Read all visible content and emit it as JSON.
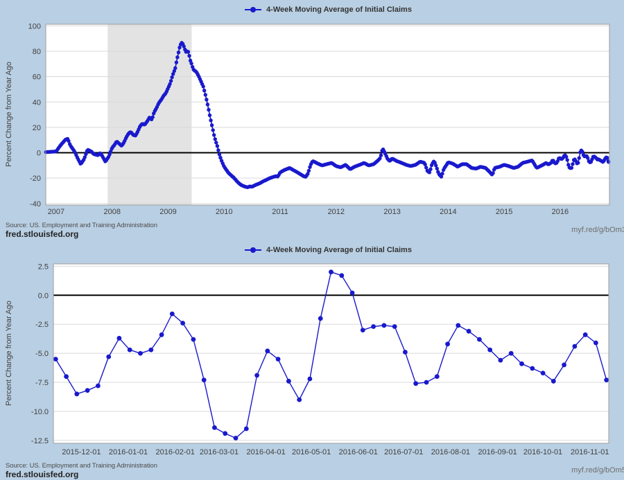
{
  "colors": {
    "background": "#b9cfe3",
    "plot_bg": "#ffffff",
    "series_blue": "#1919cd",
    "recession_band": "#e3e3e3",
    "grid": "#d9d9d9",
    "zero_line": "#000000",
    "plot_border": "#9e9e9e",
    "tick_text": "#404040",
    "legend_text": "#333333"
  },
  "top_section": {
    "legend_label": "4-Week Moving Average of Initial Claims",
    "source": "Source: US. Employment and Training Administration",
    "site": "fred.stlouisfed.org",
    "permalink": "myf.red/g/bOm3"
  },
  "bottom_section": {
    "legend_label": "4-Week Moving Average of Initial Claims",
    "source": "Source: US. Employment and Training Administration",
    "site": "fred.stlouisfed.org",
    "permalink": "myf.red/g/bOm5"
  },
  "chart_data": [
    {
      "type": "line",
      "title": "4-Week Moving Average of Initial Claims",
      "ylabel": "Percent Change from Year Ago",
      "xlabel": "",
      "legend": "4-Week Moving Average of Initial Claims",
      "legend_position": "top-center",
      "grid": "horizontal",
      "zero_line": true,
      "frequency": "weekly, shown 2007 through 2016-11-12",
      "x_ticks": [
        2007,
        2008,
        2009,
        2010,
        2011,
        2012,
        2013,
        2014,
        2015,
        2016
      ],
      "x_tick_labels": [
        "2007",
        "2008",
        "2009",
        "2010",
        "2011",
        "2012",
        "2013",
        "2014",
        "2015",
        "2016"
      ],
      "y_ticks": [
        100,
        80,
        60,
        40,
        20,
        0,
        -20,
        -40
      ],
      "y_tick_labels": [
        "100",
        "80",
        "60",
        "40",
        "20",
        "0",
        "-20",
        "-40"
      ],
      "xlim": [
        2006.815,
        2016.88
      ],
      "ylim": [
        -41.2,
        101.3
      ],
      "recession_band": [
        2007.92,
        2009.42
      ],
      "series_continues_with_bottom_chart": true,
      "points": [
        [
          2006.82,
          0.5
        ],
        [
          2007.0,
          1
        ],
        [
          2007.08,
          6
        ],
        [
          2007.17,
          10.5
        ],
        [
          2007.21,
          11
        ],
        [
          2007.25,
          6
        ],
        [
          2007.33,
          1
        ],
        [
          2007.38,
          -4
        ],
        [
          2007.44,
          -9
        ],
        [
          2007.5,
          -5
        ],
        [
          2007.56,
          2.5
        ],
        [
          2007.63,
          1
        ],
        [
          2007.67,
          -1
        ],
        [
          2007.75,
          -2
        ],
        [
          2007.79,
          0
        ],
        [
          2007.83,
          -3
        ],
        [
          2007.88,
          -7
        ],
        [
          2007.94,
          -3
        ],
        [
          2008.0,
          4
        ],
        [
          2008.04,
          6
        ],
        [
          2008.08,
          9
        ],
        [
          2008.13,
          7
        ],
        [
          2008.17,
          5.5
        ],
        [
          2008.21,
          8
        ],
        [
          2008.25,
          12
        ],
        [
          2008.29,
          15
        ],
        [
          2008.33,
          16.5
        ],
        [
          2008.38,
          14
        ],
        [
          2008.42,
          13.5
        ],
        [
          2008.46,
          17
        ],
        [
          2008.5,
          21
        ],
        [
          2008.54,
          23
        ],
        [
          2008.58,
          22
        ],
        [
          2008.63,
          25
        ],
        [
          2008.67,
          28
        ],
        [
          2008.71,
          26
        ],
        [
          2008.75,
          32
        ],
        [
          2008.79,
          35
        ],
        [
          2008.83,
          39
        ],
        [
          2008.88,
          42
        ],
        [
          2008.92,
          45
        ],
        [
          2008.96,
          47
        ],
        [
          2009.0,
          51
        ],
        [
          2009.04,
          55
        ],
        [
          2009.08,
          61
        ],
        [
          2009.13,
          67
        ],
        [
          2009.15,
          72
        ],
        [
          2009.17,
          76
        ],
        [
          2009.19,
          80
        ],
        [
          2009.21,
          84
        ],
        [
          2009.23,
          86
        ],
        [
          2009.25,
          87
        ],
        [
          2009.27,
          85
        ],
        [
          2009.29,
          83
        ],
        [
          2009.31,
          80
        ],
        [
          2009.33,
          79
        ],
        [
          2009.35,
          81
        ],
        [
          2009.38,
          76
        ],
        [
          2009.4,
          72
        ],
        [
          2009.42,
          70
        ],
        [
          2009.44,
          67
        ],
        [
          2009.46,
          65
        ],
        [
          2009.5,
          64
        ],
        [
          2009.54,
          61
        ],
        [
          2009.58,
          57
        ],
        [
          2009.63,
          52
        ],
        [
          2009.67,
          45
        ],
        [
          2009.71,
          37
        ],
        [
          2009.75,
          28
        ],
        [
          2009.79,
          20
        ],
        [
          2009.83,
          12
        ],
        [
          2009.88,
          5
        ],
        [
          2009.92,
          -2
        ],
        [
          2009.96,
          -7
        ],
        [
          2010.0,
          -11
        ],
        [
          2010.04,
          -13.5
        ],
        [
          2010.08,
          -16
        ],
        [
          2010.13,
          -18
        ],
        [
          2010.17,
          -19.5
        ],
        [
          2010.21,
          -21.5
        ],
        [
          2010.25,
          -23.5
        ],
        [
          2010.29,
          -25
        ],
        [
          2010.33,
          -26
        ],
        [
          2010.38,
          -26.8
        ],
        [
          2010.42,
          -27.2
        ],
        [
          2010.46,
          -26.5
        ],
        [
          2010.5,
          -26.8
        ],
        [
          2010.54,
          -25.8
        ],
        [
          2010.58,
          -25
        ],
        [
          2010.63,
          -24.2
        ],
        [
          2010.67,
          -23.2
        ],
        [
          2010.71,
          -22.2
        ],
        [
          2010.75,
          -21.5
        ],
        [
          2010.79,
          -20.5
        ],
        [
          2010.83,
          -19.8
        ],
        [
          2010.88,
          -19
        ],
        [
          2010.92,
          -18.5
        ],
        [
          2010.96,
          -18.8
        ],
        [
          2011.0,
          -15.5
        ],
        [
          2011.08,
          -13.5
        ],
        [
          2011.17,
          -12
        ],
        [
          2011.25,
          -14
        ],
        [
          2011.33,
          -16
        ],
        [
          2011.42,
          -18.5
        ],
        [
          2011.46,
          -19
        ],
        [
          2011.5,
          -16
        ],
        [
          2011.54,
          -10
        ],
        [
          2011.58,
          -6.5
        ],
        [
          2011.63,
          -7.5
        ],
        [
          2011.67,
          -8.5
        ],
        [
          2011.75,
          -10
        ],
        [
          2011.83,
          -9
        ],
        [
          2011.92,
          -8
        ],
        [
          2012.0,
          -10.5
        ],
        [
          2012.08,
          -11.5
        ],
        [
          2012.17,
          -9.5
        ],
        [
          2012.25,
          -13
        ],
        [
          2012.33,
          -11
        ],
        [
          2012.42,
          -9.5
        ],
        [
          2012.5,
          -8
        ],
        [
          2012.58,
          -10
        ],
        [
          2012.67,
          -9
        ],
        [
          2012.75,
          -6
        ],
        [
          2012.79,
          -4
        ],
        [
          2012.83,
          3.5
        ],
        [
          2012.88,
          -1
        ],
        [
          2012.92,
          -5
        ],
        [
          2012.96,
          -6.5
        ],
        [
          2013.0,
          -4.5
        ],
        [
          2013.08,
          -6.5
        ],
        [
          2013.17,
          -8
        ],
        [
          2013.25,
          -9.5
        ],
        [
          2013.33,
          -10.5
        ],
        [
          2013.42,
          -9.5
        ],
        [
          2013.5,
          -7
        ],
        [
          2013.58,
          -8
        ],
        [
          2013.63,
          -14.5
        ],
        [
          2013.67,
          -15.5
        ],
        [
          2013.71,
          -9
        ],
        [
          2013.75,
          -6.5
        ],
        [
          2013.79,
          -11
        ],
        [
          2013.83,
          -16.5
        ],
        [
          2013.88,
          -19
        ],
        [
          2013.92,
          -13
        ],
        [
          2014.0,
          -7.5
        ],
        [
          2014.08,
          -8.5
        ],
        [
          2014.17,
          -11
        ],
        [
          2014.25,
          -9
        ],
        [
          2014.33,
          -9
        ],
        [
          2014.42,
          -12
        ],
        [
          2014.5,
          -12.5
        ],
        [
          2014.58,
          -11
        ],
        [
          2014.67,
          -12
        ],
        [
          2014.75,
          -15.5
        ],
        [
          2014.79,
          -17.5
        ],
        [
          2014.83,
          -12
        ],
        [
          2014.92,
          -11
        ],
        [
          2015.0,
          -9.5
        ],
        [
          2015.08,
          -10.5
        ],
        [
          2015.17,
          -12
        ],
        [
          2015.25,
          -11
        ],
        [
          2015.33,
          -8
        ],
        [
          2015.42,
          -7
        ],
        [
          2015.5,
          -6
        ],
        [
          2015.58,
          -12
        ],
        [
          2015.67,
          -10
        ],
        [
          2015.75,
          -8
        ],
        [
          2015.79,
          -9.3
        ],
        [
          2015.84,
          -7.8
        ]
      ]
    },
    {
      "type": "line",
      "title": "4-Week Moving Average of Initial Claims",
      "ylabel": "Percent Change from Year Ago",
      "xlabel": "",
      "legend": "4-Week Moving Average of Initial Claims",
      "legend_position": "top-center",
      "grid": "horizontal",
      "zero_line": true,
      "frequency": "weekly",
      "x_tick_labels": [
        "2015-12-01",
        "2016-01-01",
        "2016-02-01",
        "2016-03-01",
        "2016-04-01",
        "2016-05-01",
        "2016-06-01",
        "2016-07-01",
        "2016-08-01",
        "2016-09-01",
        "2016-10-01",
        "2016-11-01"
      ],
      "y_ticks": [
        2.5,
        0.0,
        -2.5,
        -5.0,
        -7.5,
        -10.0,
        -12.5
      ],
      "y_tick_labels": [
        "2.5",
        "0.0",
        "-2.5",
        "-5.0",
        "-7.5",
        "-10.0",
        "-12.5"
      ],
      "xlim": [
        "2015-11-12",
        "2016-11-13"
      ],
      "ylim": [
        -12.75,
        2.7
      ],
      "dates": [
        "2015-11-14",
        "2015-11-21",
        "2015-11-28",
        "2015-12-05",
        "2015-12-12",
        "2015-12-19",
        "2015-12-26",
        "2016-01-02",
        "2016-01-09",
        "2016-01-16",
        "2016-01-23",
        "2016-01-30",
        "2016-02-06",
        "2016-02-13",
        "2016-02-20",
        "2016-02-27",
        "2016-03-05",
        "2016-03-12",
        "2016-03-19",
        "2016-03-26",
        "2016-04-02",
        "2016-04-09",
        "2016-04-16",
        "2016-04-23",
        "2016-04-30",
        "2016-05-07",
        "2016-05-14",
        "2016-05-21",
        "2016-05-28",
        "2016-06-04",
        "2016-06-11",
        "2016-06-18",
        "2016-06-25",
        "2016-07-02",
        "2016-07-09",
        "2016-07-16",
        "2016-07-23",
        "2016-07-30",
        "2016-08-06",
        "2016-08-13",
        "2016-08-20",
        "2016-08-27",
        "2016-09-03",
        "2016-09-10",
        "2016-09-17",
        "2016-09-24",
        "2016-10-01",
        "2016-10-08",
        "2016-10-15",
        "2016-10-22",
        "2016-10-29",
        "2016-11-05",
        "2016-11-12"
      ],
      "values": [
        -5.5,
        -7.0,
        -8.5,
        -8.2,
        -7.8,
        -5.3,
        -3.7,
        -4.7,
        -5.0,
        -4.7,
        -3.4,
        -1.6,
        -2.4,
        -3.8,
        -7.3,
        -11.4,
        -11.9,
        -12.3,
        -11.5,
        -6.9,
        -4.8,
        -5.5,
        -7.4,
        -9.0,
        -7.2,
        -2.0,
        2.0,
        1.7,
        0.2,
        -3.0,
        -2.7,
        -2.6,
        -2.7,
        -4.9,
        -7.6,
        -7.5,
        -7.0,
        -4.2,
        -2.6,
        -3.1,
        -3.8,
        -4.7,
        -5.6,
        -5.0,
        -5.9,
        -6.3,
        -6.7,
        -7.4,
        -6.0,
        -4.4,
        -3.4,
        -4.1,
        -7.3
      ]
    }
  ]
}
